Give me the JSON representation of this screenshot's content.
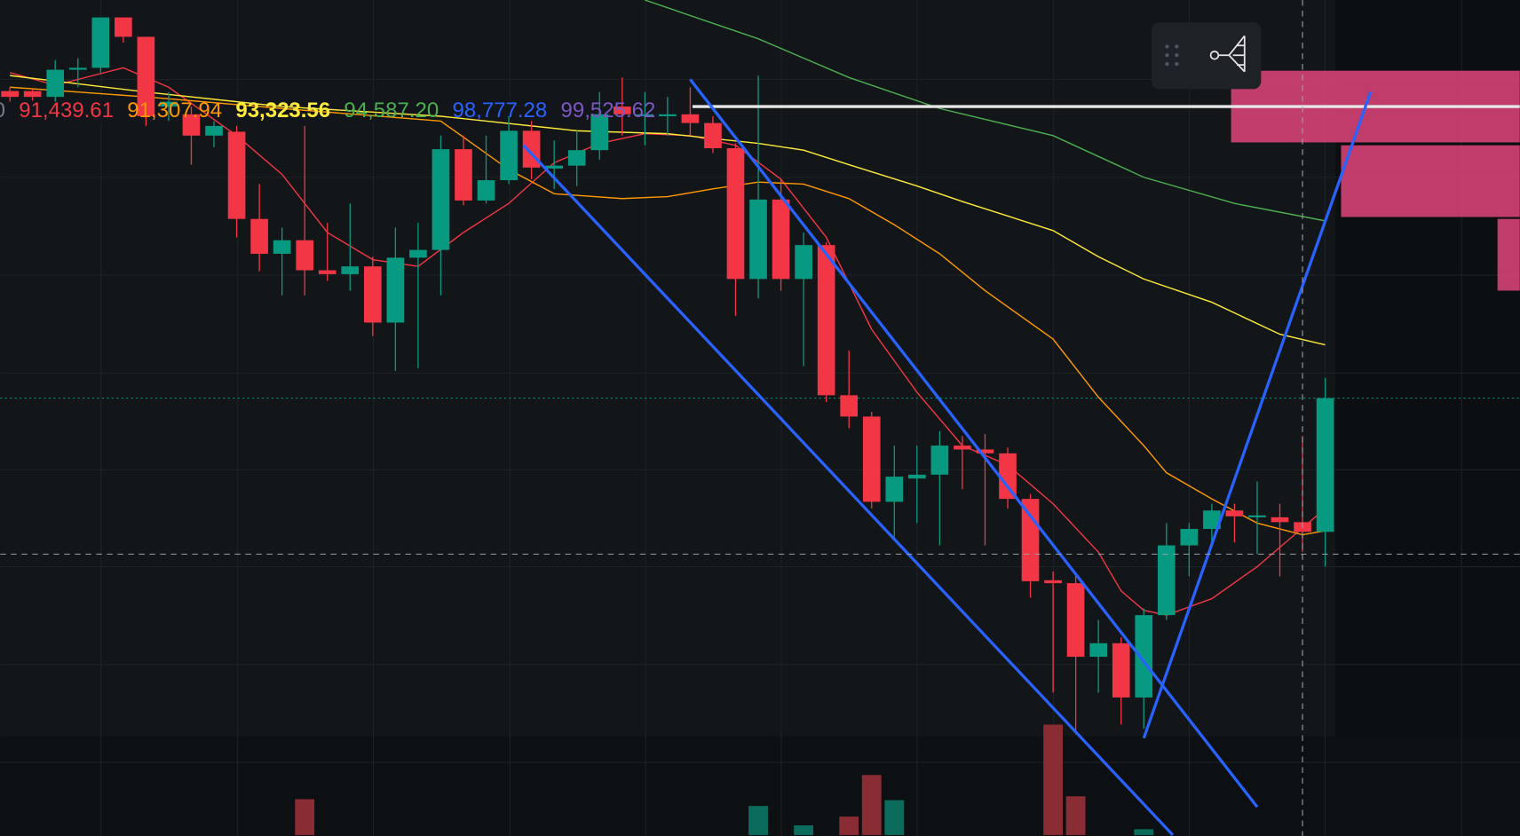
{
  "chart_data": {
    "type": "candlestick",
    "ylim": [
      89400,
      97000
    ],
    "up_color": "#089981",
    "down_color": "#f23645",
    "candles": {
      "open": [
        96060,
        96060,
        96000,
        96280,
        96300,
        96820,
        96620,
        95900,
        95820,
        95600,
        95640,
        94740,
        94380,
        94520,
        94210,
        94170,
        94250,
        93670,
        94340,
        94420,
        95460,
        94930,
        95140,
        95650,
        95260,
        95290,
        95450,
        95900,
        95800,
        95800,
        95820,
        95730,
        95470,
        94120,
        94940,
        94120,
        94470,
        92920,
        92700,
        91820,
        92060,
        92100,
        92400,
        92360,
        92320,
        91850,
        91010,
        90980,
        90220,
        90360,
        89800,
        90650,
        91370,
        91540,
        91730,
        91670,
        91660,
        91610,
        91510
      ],
      "high": [
        96100,
        96080,
        96380,
        96400,
        96820,
        96820,
        96620,
        96050,
        95900,
        95750,
        95700,
        95100,
        94650,
        95700,
        94700,
        94900,
        94350,
        94650,
        94700,
        95600,
        95600,
        95600,
        95800,
        95750,
        95550,
        95650,
        96050,
        96200,
        96050,
        96000,
        96100,
        95800,
        95520,
        96220,
        95150,
        94600,
        94500,
        93380,
        92750,
        92400,
        92400,
        92550,
        92500,
        92520,
        92380,
        91900,
        91100,
        91050,
        90600,
        90420,
        90720,
        91600,
        91600,
        91800,
        91800,
        92030,
        91800,
        92500,
        93100
      ],
      "low": [
        95950,
        95960,
        95950,
        96100,
        96250,
        96560,
        95700,
        95750,
        95300,
        95480,
        94550,
        94200,
        93950,
        93950,
        94100,
        94000,
        93530,
        93170,
        93200,
        93950,
        94880,
        94900,
        95100,
        95150,
        95050,
        95080,
        95350,
        95600,
        95500,
        95600,
        95600,
        95420,
        93740,
        93920,
        94000,
        93220,
        92850,
        92580,
        91750,
        91450,
        91600,
        91370,
        91950,
        91370,
        91750,
        90830,
        89850,
        89420,
        89850,
        89520,
        89480,
        90600,
        91050,
        91400,
        91400,
        91280,
        91050,
        91300,
        91150
      ],
      "close": [
        96000,
        96000,
        96280,
        96300,
        96820,
        96620,
        95800,
        95950,
        95600,
        95700,
        94740,
        94380,
        94520,
        94210,
        94170,
        94250,
        93670,
        94340,
        94420,
        95460,
        94930,
        95140,
        95650,
        95270,
        95290,
        95450,
        95820,
        95820,
        95820,
        95820,
        95730,
        95470,
        94120,
        94940,
        94120,
        94470,
        92920,
        92700,
        91820,
        92080,
        92100,
        92400,
        92360,
        92320,
        91850,
        91000,
        90980,
        90220,
        90360,
        89800,
        90650,
        91370,
        91540,
        91730,
        91670,
        91680,
        91610,
        91510,
        92890
      ]
    },
    "ma_labels": [
      {
        "text": "0",
        "color": "#787b86"
      },
      {
        "text": "91,439.61",
        "color": "#f23645"
      },
      {
        "text": "91,307.94",
        "color": "#ff9800"
      },
      {
        "text": "93,323.56",
        "color": "#ffeb3b"
      },
      {
        "text": "94,587.20",
        "color": "#4caf50"
      },
      {
        "text": "98,777.28",
        "color": "#2962ff"
      },
      {
        "text": "99,525.62",
        "color": "#7e57c2"
      }
    ],
    "moving_averages": [
      {
        "color": "#f23645",
        "x": [
          0,
          2,
          5,
          7,
          10,
          12,
          14,
          16,
          18,
          20,
          22,
          24,
          26,
          28,
          30,
          32,
          34,
          36,
          38,
          40,
          42,
          44,
          46,
          48,
          49,
          50,
          51,
          53,
          55,
          57,
          58
        ],
        "values": [
          96250,
          96120,
          96300,
          96100,
          95600,
          95200,
          94600,
          94320,
          94250,
          94600,
          94900,
          95320,
          95520,
          95620,
          95600,
          95500,
          95150,
          94550,
          93600,
          92950,
          92400,
          92200,
          91800,
          91300,
          90900,
          90700,
          90650,
          90820,
          91150,
          91550,
          91750
        ]
      },
      {
        "color": "#ff9800",
        "x": [
          0,
          6,
          12,
          19,
          22,
          24,
          27,
          29,
          31,
          33,
          35,
          37,
          39,
          41,
          43,
          46,
          48,
          50,
          51,
          53,
          55,
          57,
          58
        ],
        "values": [
          96100,
          96000,
          95880,
          95750,
          95250,
          95000,
          94950,
          94970,
          95050,
          95120,
          95100,
          94950,
          94680,
          94380,
          94000,
          93500,
          92900,
          92400,
          92120,
          91850,
          91600,
          91480,
          91520
        ]
      },
      {
        "color": "#ffeb3b",
        "x": [
          0,
          6,
          12,
          19,
          25,
          29,
          33,
          35,
          37,
          40,
          42,
          46,
          48,
          50,
          53,
          56,
          58
        ],
        "values": [
          96220,
          96050,
          95900,
          95800,
          95650,
          95620,
          95520,
          95450,
          95300,
          95080,
          94920,
          94620,
          94350,
          94120,
          93880,
          93550,
          93440
        ]
      },
      {
        "color": "#4caf50",
        "x": [
          28,
          33,
          37,
          41,
          46,
          50,
          54,
          58
        ],
        "values": [
          97000,
          96600,
          96200,
          95880,
          95600,
          95170,
          94900,
          94720
        ]
      }
    ],
    "trendlines": [
      {
        "color": "#2962ff",
        "x": [
          22.65,
          51.28
        ],
        "values": [
          95500,
          88380
        ]
      },
      {
        "color": "#2962ff",
        "x": [
          30,
          55
        ],
        "values": [
          96180,
          88670
        ]
      },
      {
        "color": "#2962ff",
        "x": [
          50,
          60
        ],
        "values": [
          89380,
          96050
        ]
      }
    ],
    "horizontal_line": {
      "value": 95900,
      "x_start": 30.1,
      "color": "#e6e6e6"
    },
    "price_line": {
      "value": 92890,
      "color": "#089981"
    },
    "crosshair": {
      "x": 57,
      "value": 91280
    },
    "zones": [
      {
        "x_start": 53.85,
        "top": 96270,
        "bottom": 95530
      },
      {
        "x_start": 58.7,
        "top": 95500,
        "bottom": 94760
      },
      {
        "x_start": 65.6,
        "top": 94740,
        "bottom": 94000
      }
    ],
    "zone_color": "#e0457b",
    "volume": {
      "vlim": [
        0,
        120
      ],
      "x": [
        13,
        33,
        35,
        37,
        38,
        39,
        46,
        47,
        50
      ],
      "values": [
        37,
        30,
        10,
        19,
        62,
        36,
        114,
        40,
        6
      ],
      "colors": [
        "#8a2c33",
        "#0b6b5c",
        "#0b6b5c",
        "#8a2c33",
        "#8a2c33",
        "#0b6b5c",
        "#8a2c33",
        "#8a2c33",
        "#0b6b5c"
      ]
    }
  }
}
